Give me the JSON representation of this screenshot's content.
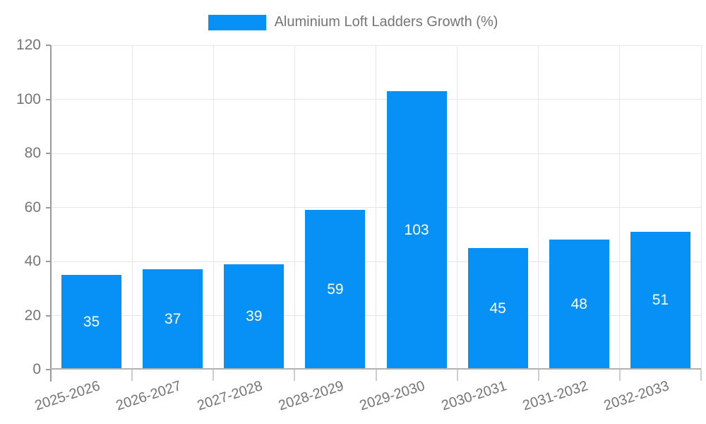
{
  "chart_data": {
    "type": "bar",
    "title": "",
    "legend": "Aluminium Loft Ladders Growth (%)",
    "legend_position": "top-center",
    "categories": [
      "2025-2026",
      "2026-2027",
      "2027-2028",
      "2028-2029",
      "2029-2030",
      "2030-2031",
      "2031-2032",
      "2032-2033"
    ],
    "values": [
      35,
      37,
      39,
      59,
      103,
      45,
      48,
      51
    ],
    "xlabel": "",
    "ylabel": "",
    "ylim": [
      0,
      120
    ],
    "yticks": [
      0,
      20,
      40,
      60,
      80,
      100,
      120
    ],
    "grid": true,
    "bar_labels_inside": true,
    "colors": {
      "bar": "#0791f7",
      "grid": "#e7e7e7",
      "axis_dark": "#9b9b9b",
      "axis_base": "#b2b2b2",
      "tick_light": "#cdcdcd",
      "label_text": "#757575",
      "value_label": "#ffffff"
    }
  }
}
